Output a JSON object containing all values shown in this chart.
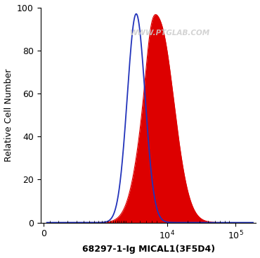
{
  "xlabel": "68297-1-Ig MICAL1(3F5D4)",
  "ylabel": "Relative Cell Number",
  "watermark": "WWW.PTGLAB.COM",
  "ylim": [
    0,
    100
  ],
  "blue_peak_log": 3.55,
  "blue_peak_y": 97,
  "blue_sigma": 0.13,
  "red_peak_log": 3.88,
  "red_peak_y": 93,
  "red_sigma": 0.22,
  "blue_color": "#2233bb",
  "red_color": "#dd0000",
  "bg_color": "#ffffff",
  "tick_label_size": 9,
  "xlabel_fontsize": 9,
  "ylabel_fontsize": 9,
  "linthresh": 300,
  "linscale": 0.25,
  "xlim_min": -50,
  "xlim_max": 200000,
  "xticks": [
    0,
    10000,
    100000
  ],
  "yticks": [
    0,
    20,
    40,
    60,
    80,
    100
  ]
}
